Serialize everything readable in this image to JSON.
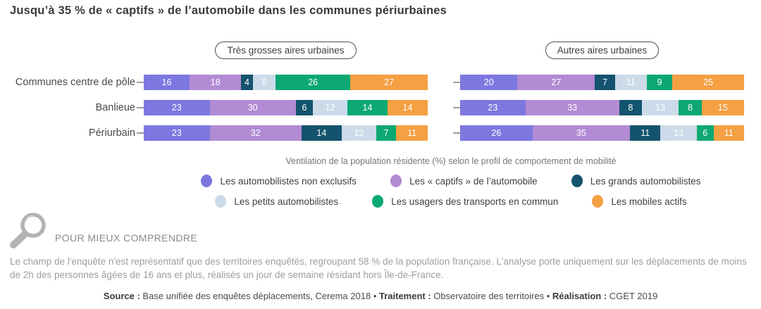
{
  "title": "Jusqu’à 35 % de « captifs » de l’automobile dans les communes périurbaines",
  "chart_data": {
    "type": "bar",
    "variant": "stacked-horizontal-percent",
    "orientation": "horizontal",
    "value_unit": "%",
    "x_range": [
      0,
      100
    ],
    "categories": [
      "Communes centre de pôle",
      "Banlieue",
      "Périurbain"
    ],
    "series_names": [
      "Les automobilistes non exclusifs",
      "Les « captifs » de l’automobile",
      "Les grands automobilistes",
      "Les petits automobilistes",
      "Les usagers des transports en commun",
      "Les mobiles actifs"
    ],
    "series_colors": [
      "#7d78e0",
      "#b28bd4",
      "#14536d",
      "#cbdbe9",
      "#0ca873",
      "#f4a043"
    ],
    "legend_title": "Ventilation de la population résidente (%) selon le profil de comportement de mobilité",
    "legend_layout_rows": [
      [
        0,
        1,
        2
      ],
      [
        3,
        4,
        5
      ]
    ],
    "panels": [
      {
        "title": "Très grosses aires urbaines",
        "series": [
          {
            "name": "Les automobilistes non exclusifs",
            "values": [
              16,
              23,
              23
            ]
          },
          {
            "name": "Les « captifs » de l’automobile",
            "values": [
              18,
              30,
              32
            ]
          },
          {
            "name": "Les grands automobilistes",
            "values": [
              4,
              6,
              14
            ]
          },
          {
            "name": "Les petits automobilistes",
            "values": [
              8,
              12,
              12
            ]
          },
          {
            "name": "Les usagers des transports en commun",
            "values": [
              26,
              14,
              7
            ]
          },
          {
            "name": "Les mobiles actifs",
            "values": [
              27,
              14,
              11
            ]
          }
        ]
      },
      {
        "title": "Autres aires urbaines",
        "series": [
          {
            "name": "Les automobilistes non exclusifs",
            "values": [
              20,
              23,
              26
            ]
          },
          {
            "name": "Les « captifs » de l’automobile",
            "values": [
              27,
              33,
              35
            ]
          },
          {
            "name": "Les grands automobilistes",
            "values": [
              7,
              8,
              11
            ]
          },
          {
            "name": "Les petits automobilistes",
            "values": [
              11,
              13,
              13
            ]
          },
          {
            "name": "Les usagers des transports en commun",
            "values": [
              9,
              8,
              6
            ]
          },
          {
            "name": "Les mobiles actifs",
            "values": [
              25,
              15,
              11
            ]
          }
        ]
      }
    ]
  },
  "explainer": {
    "heading": "POUR MIEUX COMPRENDRE",
    "body": "Le champ de l'enquête n'est représentatif que des territoires enquêtés, regroupant 58 % de la population française. L'analyse porte uniquement sur les déplacements de moins de 2h des personnes âgées de 16 ans et plus, réalisés un jour de semaine résidant hors Île-de-France."
  },
  "source": {
    "separator": "•",
    "parts": [
      {
        "label": "Source :",
        "text": "Base unifiée des enquêtes déplacements, Cerema 2018"
      },
      {
        "label": "Traitement :",
        "text": "Observatoire des territoires"
      },
      {
        "label": "Réalisation :",
        "text": "CGET 2019"
      }
    ]
  }
}
